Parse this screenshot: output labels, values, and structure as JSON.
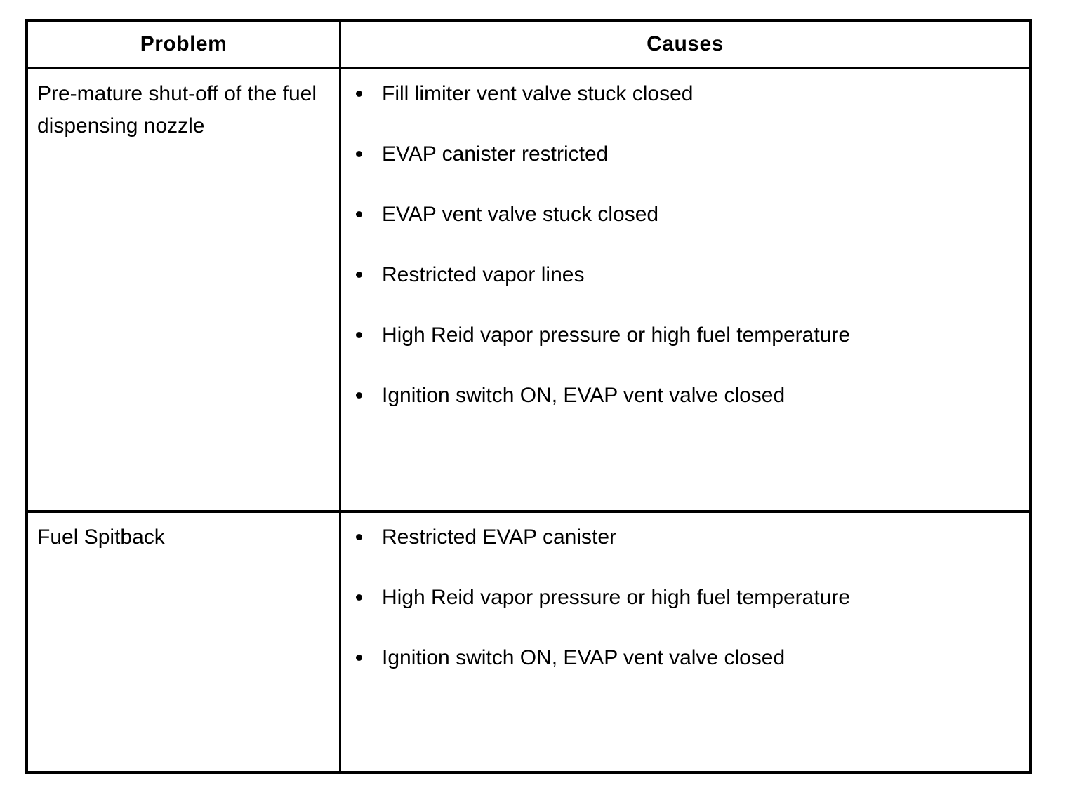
{
  "table": {
    "headers": {
      "problem": "Problem",
      "causes": "Causes"
    },
    "rows": [
      {
        "problem": "Pre-mature shut-off of the fuel dispensing nozzle",
        "causes": [
          "Fill limiter vent valve stuck closed",
          "EVAP canister restricted",
          "EVAP vent valve stuck closed",
          "Restricted vapor lines",
          "High Reid vapor pressure or high fuel temperature",
          "Ignition switch ON, EVAP vent valve closed"
        ]
      },
      {
        "problem": "Fuel Spitback",
        "causes": [
          "Restricted EVAP canister",
          "High Reid vapor pressure or high fuel temperature",
          "Ignition switch ON, EVAP vent valve closed"
        ]
      }
    ]
  },
  "colors": {
    "border": "#000000",
    "text": "#000000",
    "background": "#ffffff"
  }
}
